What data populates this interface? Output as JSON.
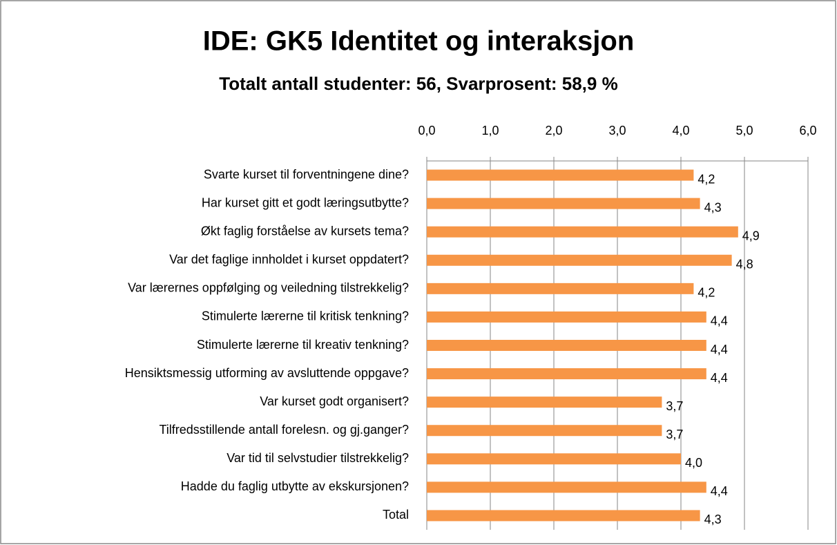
{
  "chart_data": {
    "type": "hbar",
    "title": "IDE: GK5 Identitet og interaksjon",
    "subtitle": "Totalt antall studenter: 56, Svarprosent: 58,9 %",
    "categories": [
      "Svarte kurset til forventningene dine?",
      "Har kurset gitt et godt læringsutbytte?",
      "Økt faglig forståelse av kursets tema?",
      "Var det faglige innholdet i kurset oppdatert?",
      "Var lærernes oppfølging og veiledning tilstrekkelig?",
      "Stimulerte lærerne til kritisk tenkning?",
      "Stimulerte lærerne til kreativ tenkning?",
      "Hensiktsmessig utforming av avsluttende oppgave?",
      "Var kurset godt organisert?",
      "Tilfredsstillende antall forelesn. og gj.ganger?",
      "Var tid til selvstudier tilstrekkelig?",
      "Hadde du faglig utbytte av ekskursjonen?",
      "Total"
    ],
    "values": [
      4.2,
      4.3,
      4.9,
      4.8,
      4.2,
      4.4,
      4.4,
      4.4,
      3.7,
      3.7,
      4.0,
      4.4,
      4.3
    ],
    "value_labels": [
      "4,2",
      "4,3",
      "4,9",
      "4,8",
      "4,2",
      "4,4",
      "4,4",
      "4,4",
      "3,7",
      "3,7",
      "4,0",
      "4,4",
      "4,3"
    ],
    "color": "#f79646",
    "xlim": [
      0,
      6
    ],
    "xticks": [
      {
        "value": 0,
        "label": "0,0"
      },
      {
        "value": 1,
        "label": "1,0"
      },
      {
        "value": 2,
        "label": "2,0"
      },
      {
        "value": 3,
        "label": "3,0"
      },
      {
        "value": 4,
        "label": "4,0"
      },
      {
        "value": 5,
        "label": "5,0"
      },
      {
        "value": 6,
        "label": "6,0"
      }
    ],
    "grid": true
  }
}
